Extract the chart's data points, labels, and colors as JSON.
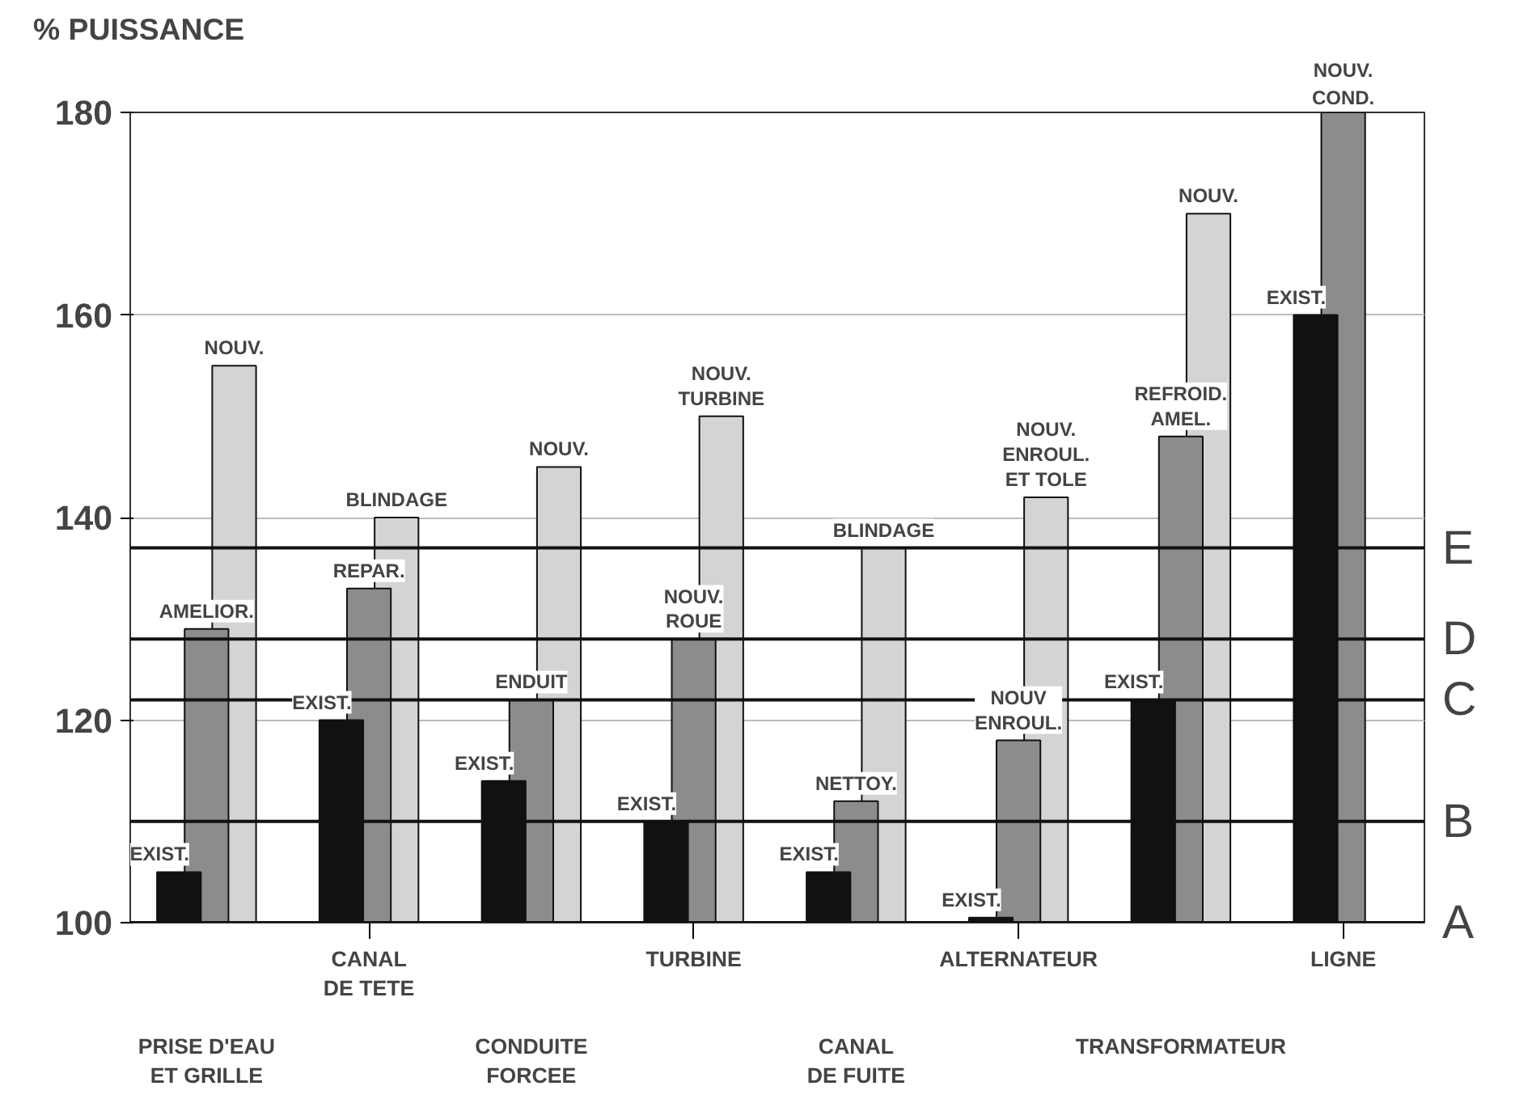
{
  "chart_data": {
    "type": "bar",
    "ylabel": "% PUISSANCE",
    "categories": [
      "PRISE D'EAU\nET GRILLE",
      "CANAL\nDE TETE",
      "CONDUITE\nFORCEE",
      "TURBINE",
      "CANAL\nDE FUITE",
      "ALTERNATEUR",
      "TRANSFORMATEUR",
      "LIGNE"
    ],
    "series": [
      {
        "color": "#111111",
        "values": [
          105,
          120,
          114,
          110,
          105,
          100.5,
          122,
          160
        ],
        "value_labels": [
          "EXIST.",
          "EXIST.",
          "EXIST.",
          "EXIST.",
          "EXIST.",
          "EXIST.",
          "EXIST.",
          "EXIST."
        ]
      },
      {
        "color": "#8c8c8c",
        "values": [
          129,
          133,
          122,
          128,
          112,
          118,
          148,
          180
        ],
        "value_labels": [
          "AMELIOR.",
          "REPAR.",
          "ENDUIT",
          "NOUV.\nROUE",
          "NETTOY.",
          "NOUV\nENROUL.",
          "REFROID.\nAMEL.",
          "NOUV.\nCOND."
        ]
      },
      {
        "color": "#d4d4d4",
        "values": [
          155,
          140,
          145,
          150,
          137,
          142,
          170,
          null
        ],
        "value_labels": [
          "NOUV.",
          "BLINDAGE",
          "NOUV.",
          "NOUV.\nTURBINE",
          "BLINDAGE",
          "NOUV.\nENROUL.\nET TOLE",
          "NOUV.",
          null
        ]
      }
    ],
    "ylim": [
      100,
      180
    ],
    "yticks": [
      100,
      120,
      140,
      160,
      180
    ],
    "grid": "y",
    "ref_lines": [
      {
        "axis": "y",
        "value": 100,
        "label": "A"
      },
      {
        "axis": "y",
        "value": 110,
        "label": "B"
      },
      {
        "axis": "y",
        "value": 122,
        "label": "C"
      },
      {
        "axis": "y",
        "value": 128,
        "label": "D"
      },
      {
        "axis": "y",
        "value": 137,
        "label": "E"
      }
    ]
  }
}
